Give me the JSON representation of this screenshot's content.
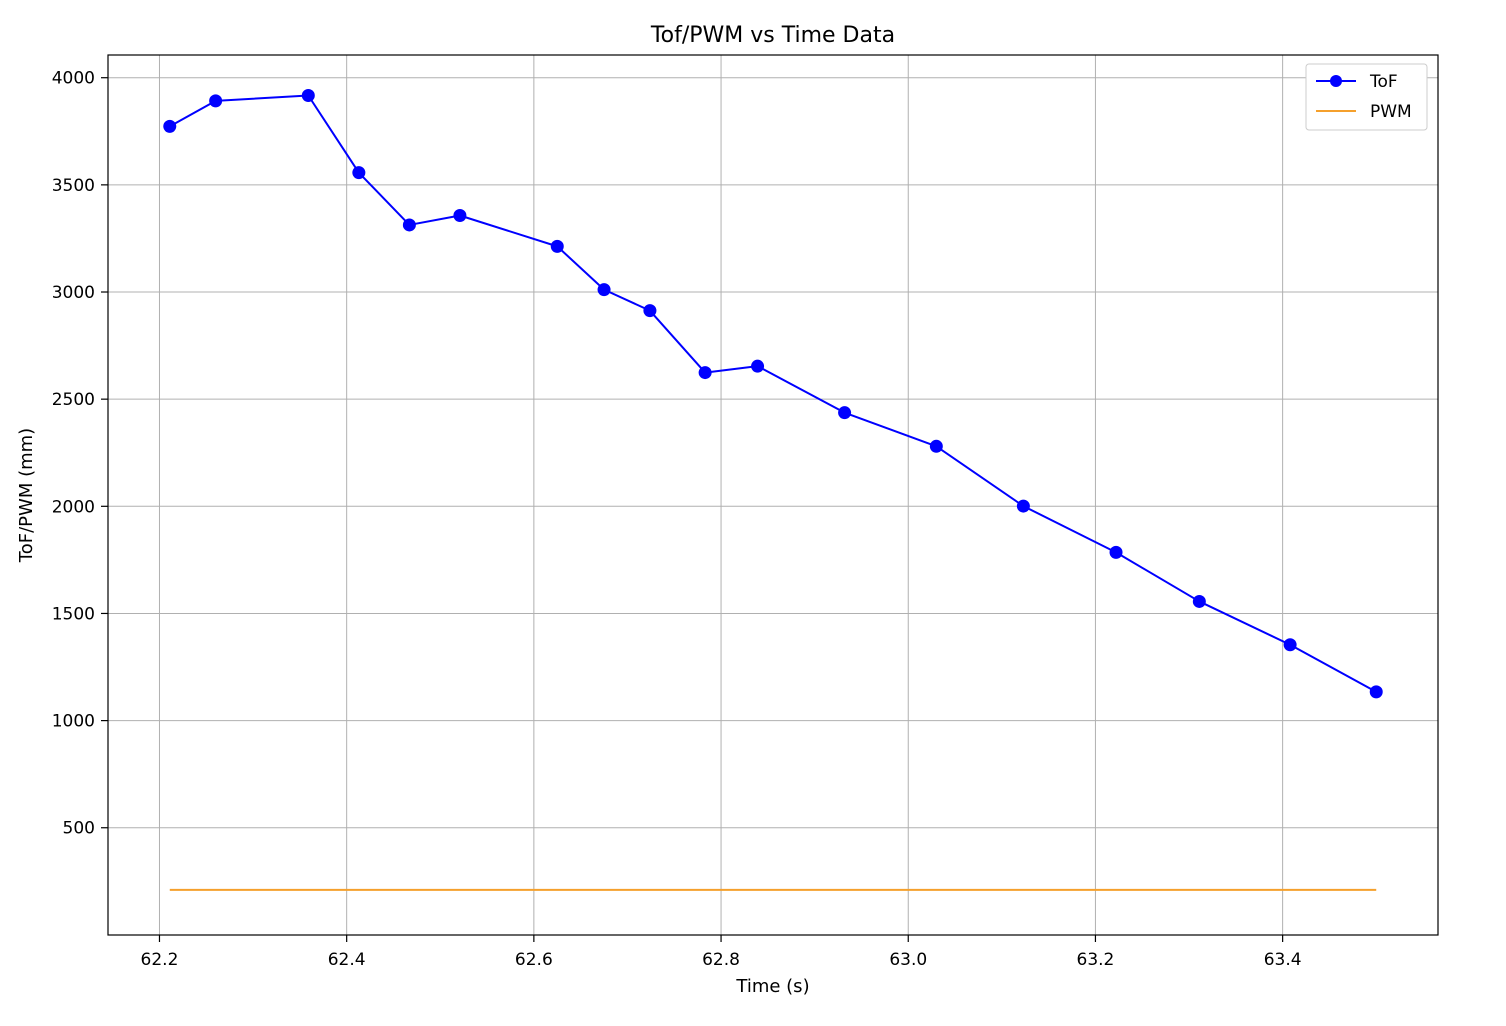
{
  "chart_data": {
    "type": "line",
    "title": "Tof/PWM vs Time Data",
    "xlabel": "Time (s)",
    "ylabel": "ToF/PWM (mm)",
    "xlim": [
      62.145,
      63.566
    ],
    "ylim": [
      -0.5,
      4106
    ],
    "xticks": [
      62.2,
      62.4,
      62.6,
      62.8,
      63.0,
      63.2,
      63.4
    ],
    "xtick_labels": [
      "62.2",
      "62.4",
      "62.6",
      "62.8",
      "63.0",
      "63.2",
      "63.4"
    ],
    "yticks": [
      500,
      1000,
      1500,
      2000,
      2500,
      3000,
      3500,
      4000
    ],
    "ytick_labels": [
      "500",
      "1000",
      "1500",
      "2000",
      "2500",
      "3000",
      "3500",
      "4000"
    ],
    "grid": true,
    "legend_position": "top-right",
    "series": [
      {
        "name": "ToF",
        "color": "#0000ff",
        "marker": "circle",
        "x": [
          62.211,
          62.26,
          62.359,
          62.413,
          62.467,
          62.521,
          62.625,
          62.675,
          62.724,
          62.783,
          62.839,
          62.932,
          63.03,
          63.123,
          63.222,
          63.311,
          63.408,
          63.5
        ],
        "y": [
          3773,
          3892,
          3917,
          3557,
          3313,
          3357,
          3213,
          3011,
          2913,
          2624,
          2654,
          2437,
          2280,
          2001,
          1785,
          1556,
          1354,
          1134
        ]
      },
      {
        "name": "PWM",
        "color": "#f5a02c",
        "marker": "none",
        "x": [
          62.211,
          63.5
        ],
        "y": [
          210,
          210
        ]
      }
    ]
  }
}
